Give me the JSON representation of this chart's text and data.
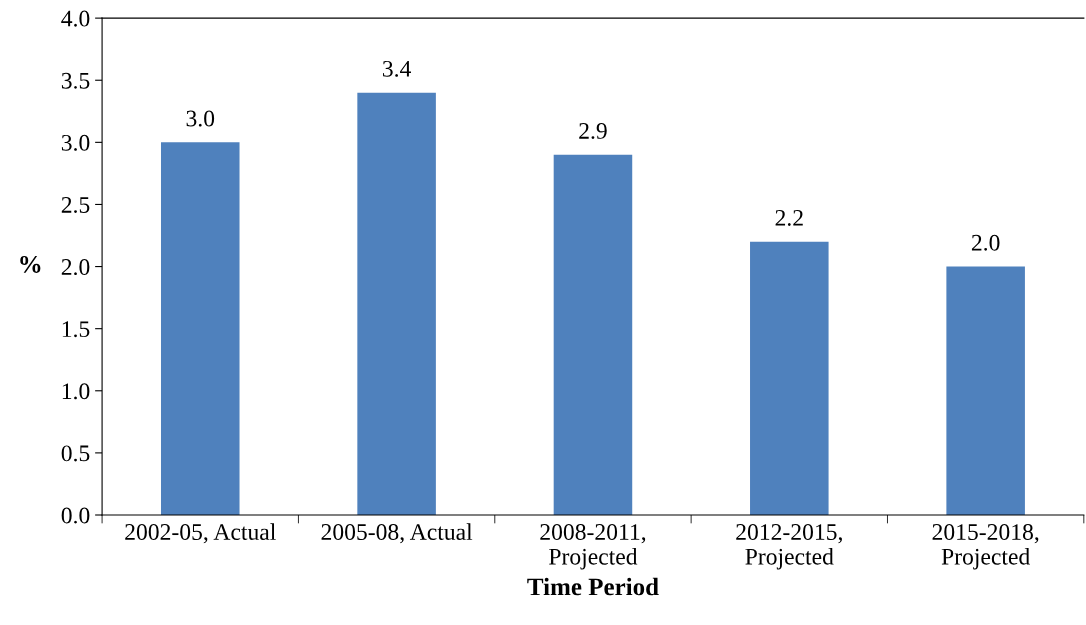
{
  "chart_data": {
    "type": "bar",
    "xlabel": "Time Period",
    "ylabel": "%",
    "categories": [
      "2002-05, Actual",
      "2005-08, Actual",
      "2008-2011,\nProjected",
      "2012-2015,\nProjected",
      "2015-2018,\nProjected"
    ],
    "values": [
      3.0,
      3.4,
      2.9,
      2.2,
      2.0
    ],
    "value_labels": [
      "3.0",
      "3.4",
      "2.9",
      "2.2",
      "2.0"
    ],
    "color": "#4f81bd",
    "ylim": [
      0,
      4.0
    ],
    "yticks": [
      {
        "value": 0,
        "label": "0.0"
      },
      {
        "value": 0.5,
        "label": "0.5"
      },
      {
        "value": 1.0,
        "label": "1.0"
      },
      {
        "value": 1.5,
        "label": "1.5"
      },
      {
        "value": 2.0,
        "label": "2.0"
      },
      {
        "value": 2.5,
        "label": "2.5"
      },
      {
        "value": 3.0,
        "label": "3.0"
      },
      {
        "value": 3.5,
        "label": "3.5"
      },
      {
        "value": 4.0,
        "label": "4.0"
      }
    ],
    "grid": false,
    "legend": false
  }
}
